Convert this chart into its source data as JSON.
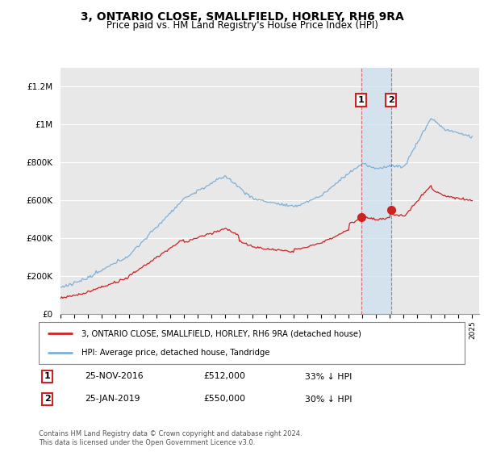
{
  "title": "3, ONTARIO CLOSE, SMALLFIELD, HORLEY, RH6 9RA",
  "subtitle": "Price paid vs. HM Land Registry's House Price Index (HPI)",
  "title_fontsize": 10,
  "subtitle_fontsize": 8.5,
  "ylabel_ticks": [
    "£0",
    "£200K",
    "£400K",
    "£600K",
    "£800K",
    "£1M",
    "£1.2M"
  ],
  "ytick_values": [
    0,
    200000,
    400000,
    600000,
    800000,
    1000000,
    1200000
  ],
  "ylim": [
    0,
    1300000
  ],
  "xlim_start": 1995.0,
  "xlim_end": 2025.5,
  "background_color": "#ffffff",
  "plot_bg_color": "#e8e8e8",
  "grid_color": "#ffffff",
  "hpi_color": "#7fb0d8",
  "price_color": "#cc2222",
  "shade_color": "#cce0f0",
  "marker1_x": 2016.9,
  "marker1_y": 512000,
  "marker2_x": 2019.07,
  "marker2_y": 550000,
  "sale1_date": "25-NOV-2016",
  "sale1_price": "£512,000",
  "sale1_note": "33% ↓ HPI",
  "sale2_date": "25-JAN-2019",
  "sale2_price": "£550,000",
  "sale2_note": "30% ↓ HPI",
  "legend_line1": "3, ONTARIO CLOSE, SMALLFIELD, HORLEY, RH6 9RA (detached house)",
  "legend_line2": "HPI: Average price, detached house, Tandridge",
  "footer": "Contains HM Land Registry data © Crown copyright and database right 2024.\nThis data is licensed under the Open Government Licence v3.0.",
  "xtick_years": [
    1995,
    1996,
    1997,
    1998,
    1999,
    2000,
    2001,
    2002,
    2003,
    2004,
    2005,
    2006,
    2007,
    2008,
    2009,
    2010,
    2011,
    2012,
    2013,
    2014,
    2015,
    2016,
    2017,
    2018,
    2019,
    2020,
    2021,
    2022,
    2023,
    2024,
    2025
  ]
}
